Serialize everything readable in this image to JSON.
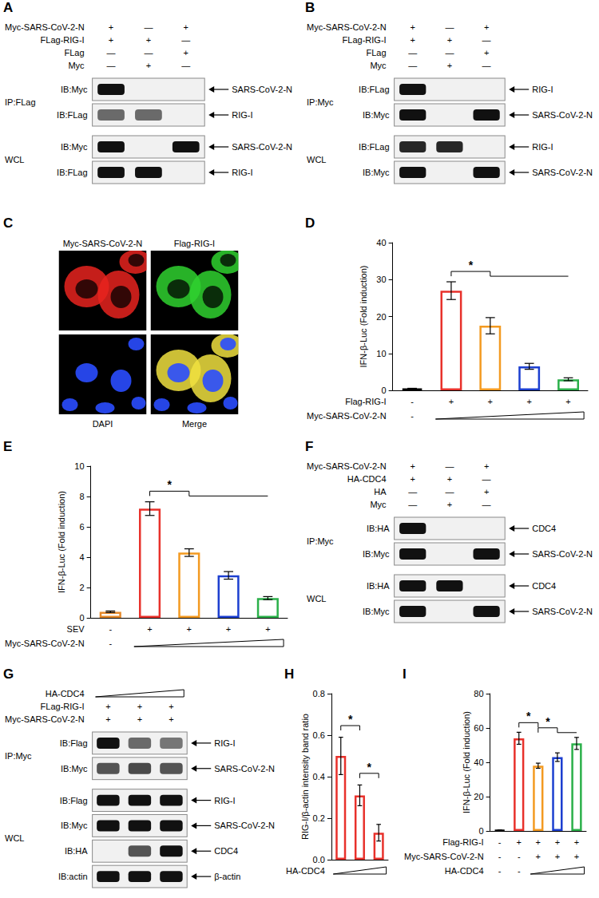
{
  "blots": [
    {
      "panel": "A",
      "header": [
        {
          "label": "Myc-SARS-CoV-2-N",
          "signs": [
            "+",
            "—",
            "+"
          ]
        },
        {
          "label": "FLag-RIG-I",
          "signs": [
            "+",
            "+",
            "—"
          ]
        },
        {
          "label": "FLag",
          "signs": [
            "—",
            "—",
            "+"
          ]
        },
        {
          "label": "Myc",
          "signs": [
            "—",
            "+",
            "—"
          ]
        }
      ],
      "groups": [
        {
          "label": "IP:FLag",
          "rows": [
            {
              "label": "IB:Myc",
              "protein": "SARS-CoV-2-N",
              "bands": [
                1,
                0,
                0
              ]
            },
            {
              "label": "IB:FLag",
              "protein": "RIG-I",
              "bands": [
                0.6,
                0.6,
                0
              ]
            }
          ]
        },
        {
          "label": "WCL",
          "rows": [
            {
              "label": "IB:Myc",
              "protein": "SARS-CoV-2-N",
              "bands": [
                1,
                0,
                1
              ]
            },
            {
              "label": "IB:FLag",
              "protein": "RIG-I",
              "bands": [
                1,
                1,
                0
              ]
            }
          ]
        }
      ]
    },
    {
      "panel": "B",
      "header": [
        {
          "label": "Myc-SARS-CoV-2-N",
          "signs": [
            "+",
            "—",
            "+"
          ]
        },
        {
          "label": "FLag-RIG-I",
          "signs": [
            "+",
            "+",
            "—"
          ]
        },
        {
          "label": "FLag",
          "signs": [
            "—",
            "—",
            "+"
          ]
        },
        {
          "label": "Myc",
          "signs": [
            "—",
            "+",
            "—"
          ]
        }
      ],
      "groups": [
        {
          "label": "IP:Myc",
          "rows": [
            {
              "label": "IB:FLag",
              "protein": "RIG-I",
              "bands": [
                1,
                0,
                0
              ]
            },
            {
              "label": "IB:Myc",
              "protein": "SARS-CoV-2-N",
              "bands": [
                1,
                0,
                1
              ]
            }
          ]
        },
        {
          "label": "WCL",
          "rows": [
            {
              "label": "IB:FLag",
              "protein": "RIG-I",
              "bands": [
                0.9,
                0.9,
                0
              ]
            },
            {
              "label": "IB:Myc",
              "protein": "SARS-CoV-2-N",
              "bands": [
                1,
                0,
                1
              ]
            }
          ]
        }
      ]
    },
    {
      "panel": "F",
      "header": [
        {
          "label": "Myc-SARS-CoV-2-N",
          "signs": [
            "+",
            "—",
            "+"
          ]
        },
        {
          "label": "HA-CDC4",
          "signs": [
            "+",
            "+",
            "—"
          ]
        },
        {
          "label": "HA",
          "signs": [
            "—",
            "—",
            "+"
          ]
        },
        {
          "label": "Myc",
          "signs": [
            "—",
            "+",
            "—"
          ]
        }
      ],
      "groups": [
        {
          "label": "IP:Myc",
          "rows": [
            {
              "label": "IB:HA",
              "protein": "CDC4",
              "bands": [
                1,
                0,
                0
              ]
            },
            {
              "label": "IB:Myc",
              "protein": "SARS-CoV-2-N",
              "bands": [
                1,
                0,
                1
              ]
            }
          ]
        },
        {
          "label": "WCL",
          "rows": [
            {
              "label": "IB:HA",
              "protein": "CDC4",
              "bands": [
                1,
                1,
                0
              ]
            },
            {
              "label": "IB:Myc",
              "protein": "SARS-CoV-2-N",
              "bands": [
                1,
                0,
                1
              ]
            }
          ]
        }
      ]
    },
    {
      "panel": "G",
      "header": [
        {
          "label": "HA-CDC4",
          "signs": [
            null,
            null,
            null
          ],
          "marker": "wedge"
        },
        {
          "label": "FLag-RIG-I",
          "signs": [
            "+",
            "+",
            "+"
          ]
        },
        {
          "label": "Myc-SARS-CoV-2-N",
          "signs": [
            "+",
            "+",
            "+"
          ]
        }
      ],
      "groups": [
        {
          "label": "IP:Myc",
          "rows": [
            {
              "label": "IB:Flag",
              "protein": "RIG-I",
              "bands": [
                1,
                0.6,
                0.55
              ]
            },
            {
              "label": "IB:Myc",
              "protein": "SARS-CoV-2-N",
              "bands": [
                0.7,
                0.75,
                0.7
              ]
            }
          ]
        },
        {
          "label": "WCL",
          "rows": [
            {
              "label": "IB:Flag",
              "protein": "RIG-I",
              "bands": [
                1,
                1,
                1
              ]
            },
            {
              "label": "IB:Myc",
              "protein": "SARS-CoV-2-N",
              "bands": [
                1,
                1,
                1
              ]
            },
            {
              "label": "IB:HA",
              "protein": "CDC4",
              "bands": [
                0,
                0.7,
                1
              ]
            },
            {
              "label": "IB:actin",
              "protein": "β-actin",
              "bands": [
                1,
                1,
                1
              ]
            }
          ]
        }
      ]
    }
  ],
  "micrographs": {
    "panel": "C",
    "images": [
      {
        "label": "Myc-SARS-CoV-2-N",
        "color": "#e8231e"
      },
      {
        "label": "Flag-RIG-I",
        "color": "#2fd12f"
      },
      {
        "label": "DAPI",
        "color": "#2a4cff"
      },
      {
        "label": "Merge",
        "color": "#f0e040"
      }
    ]
  },
  "chart_data": [
    {
      "panel": "D",
      "type": "bar",
      "ylabel": "IFN-β-Luc (Fold induction)",
      "categories": [
        null,
        null,
        null,
        null,
        null
      ],
      "values": [
        0.5,
        27,
        17.5,
        6.5,
        3
      ],
      "errors": [
        0.05,
        2.4,
        2.2,
        0.8,
        0.4
      ],
      "colors": [
        "#000000",
        "#e8312b",
        "#f39a21",
        "#1c3fd0",
        "#2bb04a"
      ],
      "ylim": [
        0,
        40
      ],
      "yticks": [
        0,
        10,
        20,
        30,
        40
      ],
      "grid": false,
      "tick_labels": "y",
      "conditions": [
        {
          "label": "Flag-RIG-I",
          "signs": [
            "-",
            "+",
            "+",
            "+",
            "+"
          ]
        },
        {
          "label": "Myc-SARS-CoV-2-N",
          "signs": [
            "-",
            null,
            null,
            null,
            null
          ],
          "marker": "wedge"
        }
      ],
      "significance": [
        {
          "from": 1,
          "to": [
            2,
            4
          ],
          "text": "*"
        }
      ]
    },
    {
      "panel": "E",
      "type": "bar",
      "ylabel": "IFN-β-Luc (Fold induction)",
      "categories": [
        null,
        null,
        null,
        null,
        null
      ],
      "values": [
        0.4,
        7.2,
        4.3,
        2.8,
        1.3
      ],
      "errors": [
        0.05,
        0.45,
        0.25,
        0.25,
        0.1
      ],
      "colors": [
        "#e5892a",
        "#e8312b",
        "#f39a21",
        "#1c3fd0",
        "#2bb04a"
      ],
      "ylim": [
        0,
        10
      ],
      "yticks": [
        0,
        2,
        4,
        6,
        8,
        10
      ],
      "grid": false,
      "tick_labels": "y",
      "conditions": [
        {
          "label": "SEV",
          "signs": [
            "-",
            "+",
            "+",
            "+",
            "+"
          ]
        },
        {
          "label": "Myc-SARS-CoV-2-N",
          "signs": [
            "-",
            null,
            null,
            null,
            null
          ],
          "marker": "wedge"
        }
      ],
      "significance": [
        {
          "from": 1,
          "to": [
            2,
            4
          ],
          "text": "*"
        }
      ]
    },
    {
      "panel": "H",
      "type": "bar",
      "ylabel": "RIG-I/β-actin intensity band ratio",
      "categories": [
        null,
        null,
        null
      ],
      "values": [
        0.5,
        0.31,
        0.13
      ],
      "errors": [
        0.09,
        0.05,
        0.04
      ],
      "colors": [
        "#e8312b",
        "#e8312b",
        "#e8312b"
      ],
      "ylim": [
        0,
        0.8
      ],
      "yticks": [
        {
          "value": 0,
          "label": "0.0"
        },
        {
          "value": 0.2,
          "label": "0.2"
        },
        {
          "value": 0.4,
          "label": "0.4"
        },
        {
          "value": 0.6,
          "label": "0.6"
        },
        {
          "value": 0.8,
          "label": "0.8"
        }
      ],
      "grid": false,
      "tick_labels": "y",
      "conditions": [
        {
          "label": "HA-CDC4",
          "signs": [
            null,
            null,
            null
          ],
          "marker": "wedge"
        }
      ],
      "significance": [
        {
          "from": 0,
          "to": [
            1,
            1
          ],
          "text": "*"
        },
        {
          "from": 1,
          "to": [
            2,
            2
          ],
          "text": "*"
        }
      ]
    },
    {
      "panel": "I",
      "type": "bar",
      "ylabel": "IFN-β-Luc (Fold induction)",
      "categories": [
        null,
        null,
        null,
        null,
        null
      ],
      "values": [
        0.5,
        54,
        38,
        43,
        51
      ],
      "errors": [
        0.05,
        3.5,
        1.5,
        2.5,
        3.5
      ],
      "colors": [
        "#000000",
        "#e8312b",
        "#f39a21",
        "#1c3fd0",
        "#2bb04a"
      ],
      "ylim": [
        0,
        80
      ],
      "yticks": [
        0,
        20,
        40,
        60,
        80
      ],
      "grid": false,
      "tick_labels": "y",
      "conditions": [
        {
          "label": "Flag-RIG-I",
          "signs": [
            "-",
            "+",
            "+",
            "+",
            "+"
          ]
        },
        {
          "label": "Myc-SARS-CoV-2-N",
          "signs": [
            "-",
            "-",
            "+",
            "+",
            "+"
          ]
        },
        {
          "label": "HA-CDC4",
          "signs": [
            "-",
            "-",
            null,
            null,
            null
          ],
          "marker": "wedge"
        }
      ],
      "significance": [
        {
          "from": 1,
          "to": [
            2,
            2
          ],
          "text": "*"
        },
        {
          "from": 2,
          "to": [
            3,
            4
          ],
          "text": "*"
        }
      ]
    }
  ]
}
